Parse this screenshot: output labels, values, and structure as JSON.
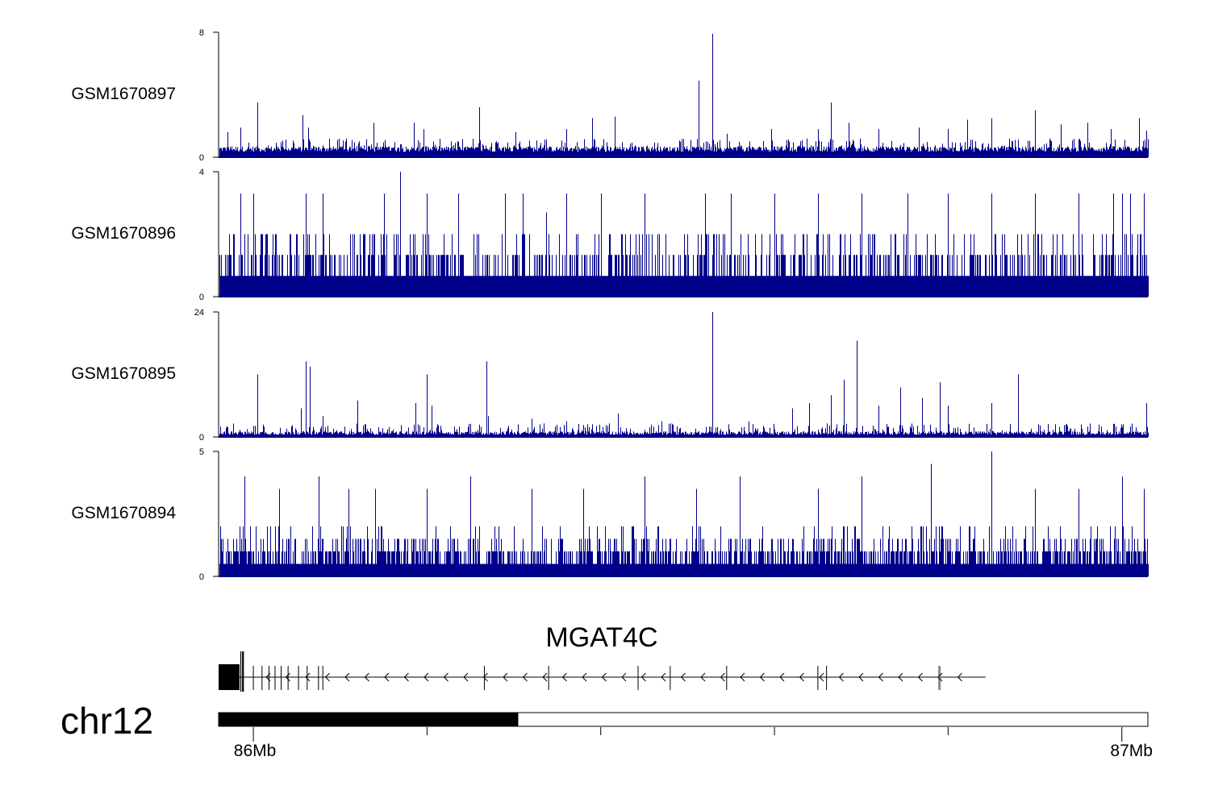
{
  "chart_data": {
    "type": "area",
    "region": {
      "chrom": "chr12",
      "start_mb": 85.96,
      "end_mb": 87.03
    },
    "tracks": [
      {
        "name": "GSM1670897",
        "ylim": [
          0,
          8
        ],
        "color": "#00008B",
        "baseline": 0.35,
        "noise": 0.35,
        "dense_level": 0.6,
        "peaks": [
          [
            85.97,
            1.6
          ],
          [
            85.985,
            1.9
          ],
          [
            86.005,
            3.5
          ],
          [
            86.057,
            2.7
          ],
          [
            86.063,
            1.9
          ],
          [
            86.138,
            2.2
          ],
          [
            86.185,
            2.2
          ],
          [
            86.196,
            1.8
          ],
          [
            86.26,
            3.2
          ],
          [
            86.302,
            1.6
          ],
          [
            86.36,
            1.8
          ],
          [
            86.39,
            2.5
          ],
          [
            86.416,
            2.6
          ],
          [
            86.513,
            4.9
          ],
          [
            86.528,
            7.9
          ],
          [
            86.545,
            1.5
          ],
          [
            86.596,
            1.8
          ],
          [
            86.65,
            1.8
          ],
          [
            86.665,
            3.5
          ],
          [
            86.685,
            2.2
          ],
          [
            86.72,
            1.8
          ],
          [
            86.766,
            1.9
          ],
          [
            86.8,
            1.8
          ],
          [
            86.822,
            2.4
          ],
          [
            86.85,
            2.5
          ],
          [
            86.9,
            3.0
          ],
          [
            86.93,
            2.1
          ],
          [
            86.96,
            2.2
          ],
          [
            86.987,
            1.8
          ],
          [
            87.02,
            2.5
          ],
          [
            87.028,
            1.7
          ]
        ]
      },
      {
        "name": "GSM1670896",
        "ylim": [
          0,
          4
        ],
        "color": "#00008B",
        "quantized": true,
        "step": 0.667,
        "levels": [
          1,
          2,
          3
        ],
        "probs": [
          0.55,
          0.3,
          0.12
        ],
        "peaks": [
          [
            85.985,
            3.3
          ],
          [
            86.0,
            3.3
          ],
          [
            86.06,
            3.3
          ],
          [
            86.08,
            3.3
          ],
          [
            86.15,
            3.3
          ],
          [
            86.169,
            4.0
          ],
          [
            86.2,
            3.3
          ],
          [
            86.236,
            3.3
          ],
          [
            86.29,
            3.3
          ],
          [
            86.31,
            3.3
          ],
          [
            86.337,
            2.7
          ],
          [
            86.36,
            3.3
          ],
          [
            86.4,
            3.3
          ],
          [
            86.45,
            3.3
          ],
          [
            86.52,
            3.3
          ],
          [
            86.55,
            3.3
          ],
          [
            86.6,
            3.3
          ],
          [
            86.65,
            3.3
          ],
          [
            86.7,
            3.3
          ],
          [
            86.753,
            3.3
          ],
          [
            86.8,
            3.3
          ],
          [
            86.85,
            3.3
          ],
          [
            86.9,
            3.3
          ],
          [
            86.95,
            3.3
          ],
          [
            86.99,
            3.3
          ],
          [
            87.0,
            3.3
          ],
          [
            87.01,
            3.3
          ],
          [
            87.025,
            3.3
          ]
        ]
      },
      {
        "name": "GSM1670895",
        "ylim": [
          0,
          24
        ],
        "color": "#00008B",
        "baseline": 0.4,
        "noise": 0.7,
        "dense_level": 1.3,
        "peaks": [
          [
            86.005,
            12.0
          ],
          [
            86.055,
            5.5
          ],
          [
            86.06,
            14.5
          ],
          [
            86.065,
            13.5
          ],
          [
            86.08,
            4.0
          ],
          [
            86.12,
            7.0
          ],
          [
            86.187,
            6.5
          ],
          [
            86.2,
            12.0
          ],
          [
            86.205,
            6.0
          ],
          [
            86.268,
            14.5
          ],
          [
            86.27,
            4.0
          ],
          [
            86.32,
            3.5
          ],
          [
            86.36,
            3.0
          ],
          [
            86.42,
            4.5
          ],
          [
            86.47,
            3.0
          ],
          [
            86.528,
            24.0
          ],
          [
            86.57,
            3.0
          ],
          [
            86.62,
            5.5
          ],
          [
            86.64,
            6.5
          ],
          [
            86.665,
            8.0
          ],
          [
            86.68,
            11.0
          ],
          [
            86.695,
            18.5
          ],
          [
            86.72,
            6.0
          ],
          [
            86.745,
            9.5
          ],
          [
            86.77,
            7.5
          ],
          [
            86.79,
            10.5
          ],
          [
            86.8,
            6.0
          ],
          [
            86.85,
            6.5
          ],
          [
            86.88,
            12.0
          ],
          [
            86.96,
            2.0
          ],
          [
            86.99,
            2.5
          ],
          [
            87.028,
            6.5
          ]
        ]
      },
      {
        "name": "GSM1670894",
        "ylim": [
          0,
          5
        ],
        "color": "#00008B",
        "quantized": true,
        "step": 0.5,
        "levels": [
          1,
          2,
          3,
          4
        ],
        "probs": [
          0.35,
          0.35,
          0.2,
          0.08
        ],
        "peaks": [
          [
            85.99,
            4.0
          ],
          [
            86.03,
            3.5
          ],
          [
            86.075,
            4.0
          ],
          [
            86.11,
            3.5
          ],
          [
            86.14,
            3.5
          ],
          [
            86.2,
            3.5
          ],
          [
            86.25,
            4.0
          ],
          [
            86.32,
            3.5
          ],
          [
            86.38,
            3.5
          ],
          [
            86.45,
            4.0
          ],
          [
            86.51,
            3.5
          ],
          [
            86.56,
            4.0
          ],
          [
            86.65,
            3.5
          ],
          [
            86.7,
            4.0
          ],
          [
            86.78,
            4.5
          ],
          [
            86.85,
            5.0
          ],
          [
            86.9,
            3.5
          ],
          [
            86.95,
            3.5
          ],
          [
            87.0,
            4.0
          ],
          [
            87.025,
            3.5
          ]
        ]
      }
    ],
    "ticks": [
      {
        "track": 0,
        "values": [
          "8",
          "0"
        ]
      },
      {
        "track": 1,
        "values": [
          "4",
          "0"
        ]
      },
      {
        "track": 2,
        "values": [
          "24",
          "0"
        ]
      },
      {
        "track": 3,
        "values": [
          "5",
          "0"
        ]
      }
    ],
    "gene": {
      "name": "MGAT4C",
      "strand": "-",
      "start_mb": 85.96,
      "end_mb": 86.843,
      "exons": [
        [
          85.96,
          85.984
        ],
        [
          85.985,
          85.986
        ],
        [
          85.987,
          85.988
        ],
        [
          85.988,
          85.989
        ]
      ],
      "introns_breaks": [
        86.0,
        86.01,
        86.018,
        86.025,
        86.032,
        86.04,
        86.052,
        86.062,
        86.075,
        86.08,
        86.266,
        86.34,
        86.443,
        86.48,
        86.545,
        86.65,
        86.66,
        86.79
      ]
    },
    "ideogram": {
      "dark_end_mb": 86.305
    },
    "axis": {
      "labels": [
        {
          "mb": 86.0,
          "text": "86Mb"
        },
        {
          "mb": 87.0,
          "text": "87Mb"
        }
      ],
      "minor_ticks_mb": [
        86.2,
        86.4,
        86.6,
        86.8
      ]
    }
  }
}
